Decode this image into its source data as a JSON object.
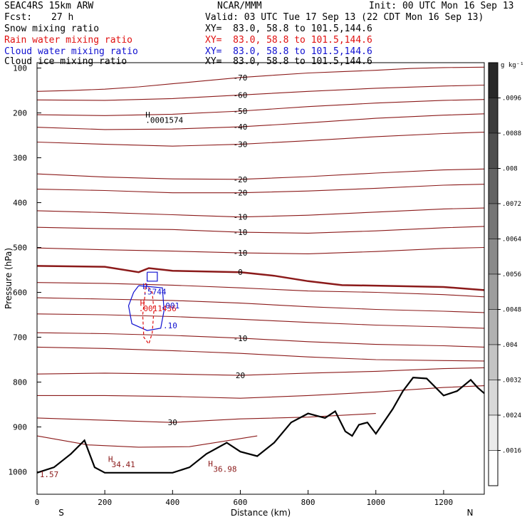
{
  "header": {
    "model": "SEAC4RS 15km ARW",
    "center": "NCAR/MMM",
    "init": "Init: 00 UTC Mon 16 Sep 13",
    "fcst_label": "Fcst:",
    "fcst_value": "27 h",
    "valid": "Valid: 03 UTC Tue 17 Sep 13 (22 CDT Mon 16 Sep 13)"
  },
  "fields": [
    {
      "label": "Snow mixing ratio",
      "xy": "XY=  83.0, 58.8 to 101.5,144.6",
      "color": "#000000"
    },
    {
      "label": "Rain water mixing ratio",
      "xy": "XY=  83.0, 58.8 to 101.5,144.6",
      "color": "#e01010"
    },
    {
      "label": "Cloud water mixing ratio",
      "xy": "XY=  83.0, 58.8 to 101.5,144.6",
      "color": "#1010d0"
    },
    {
      "label": "Cloud ice mixing ratio",
      "xy": "XY=  83.0, 58.8 to 101.5,144.6",
      "color": "#000000"
    }
  ],
  "colors": {
    "temperature": "#8b1a1a",
    "terrain": "#000000",
    "rain": "#e01010",
    "cloud": "#1010d0"
  },
  "chart_data": {
    "type": "cross-section contour",
    "xlabel": "Distance (km)",
    "ylabel": "Pressure (hPa)",
    "xlim": [
      0,
      1320
    ],
    "ylim": [
      1050,
      100
    ],
    "x_ticks": [
      0,
      200,
      400,
      600,
      800,
      1000,
      1200
    ],
    "y_ticks": [
      100,
      200,
      300,
      400,
      500,
      600,
      700,
      800,
      900,
      1000
    ],
    "x_end_labels": {
      "left": "S",
      "right": "N"
    },
    "colorbar": {
      "unit": "g kg⁻¹",
      "ticks": [
        ".0096",
        ".0088",
        ".008",
        ".0072",
        ".0064",
        ".0056",
        ".0048",
        ".004",
        ".0032",
        ".0024",
        ".0016"
      ]
    },
    "temperature_isotherms": [
      {
        "label": "-70",
        "points": [
          [
            0,
            152
          ],
          [
            100,
            150
          ],
          [
            200,
            147
          ],
          [
            300,
            142
          ],
          [
            400,
            135
          ],
          [
            500,
            128
          ],
          [
            600,
            121
          ],
          [
            700,
            116
          ],
          [
            800,
            111
          ],
          [
            900,
            108
          ],
          [
            1000,
            105
          ],
          [
            1100,
            101
          ],
          [
            1200,
            99
          ],
          [
            1320,
            98
          ]
        ]
      },
      {
        "label": "-60",
        "points": [
          [
            0,
            171
          ],
          [
            200,
            172
          ],
          [
            400,
            168
          ],
          [
            600,
            160
          ],
          [
            800,
            152
          ],
          [
            1000,
            145
          ],
          [
            1200,
            140
          ],
          [
            1320,
            138
          ]
        ]
      },
      {
        "label": "-50",
        "points": [
          [
            0,
            204
          ],
          [
            200,
            206
          ],
          [
            400,
            203
          ],
          [
            600,
            196
          ],
          [
            800,
            186
          ],
          [
            1000,
            178
          ],
          [
            1200,
            172
          ],
          [
            1320,
            170
          ]
        ]
      },
      {
        "label": "-40",
        "points": [
          [
            0,
            232
          ],
          [
            200,
            237
          ],
          [
            400,
            236
          ],
          [
            600,
            231
          ],
          [
            800,
            222
          ],
          [
            1000,
            212
          ],
          [
            1200,
            205
          ],
          [
            1320,
            202
          ]
        ]
      },
      {
        "label": "-30",
        "points": [
          [
            0,
            265
          ],
          [
            200,
            270
          ],
          [
            400,
            274
          ],
          [
            600,
            270
          ],
          [
            800,
            262
          ],
          [
            1000,
            253
          ],
          [
            1200,
            246
          ],
          [
            1320,
            243
          ]
        ]
      },
      {
        "label": "-20",
        "points": [
          [
            0,
            336
          ],
          [
            200,
            343
          ],
          [
            400,
            347
          ],
          [
            600,
            348
          ],
          [
            800,
            342
          ],
          [
            1000,
            334
          ],
          [
            1200,
            327
          ],
          [
            1320,
            325
          ]
        ]
      },
      {
        "label": "-20",
        "points": [
          [
            0,
            370
          ],
          [
            200,
            373
          ],
          [
            400,
            378
          ],
          [
            600,
            378
          ],
          [
            800,
            374
          ],
          [
            1000,
            368
          ],
          [
            1200,
            361
          ],
          [
            1320,
            359
          ]
        ]
      },
      {
        "label": "-10",
        "points": [
          [
            0,
            418
          ],
          [
            200,
            422
          ],
          [
            400,
            427
          ],
          [
            600,
            432
          ],
          [
            800,
            428
          ],
          [
            1000,
            421
          ],
          [
            1200,
            414
          ],
          [
            1320,
            412
          ]
        ]
      },
      {
        "label": "-10",
        "points": [
          [
            0,
            455
          ],
          [
            200,
            458
          ],
          [
            400,
            460
          ],
          [
            600,
            466
          ],
          [
            800,
            468
          ],
          [
            1000,
            463
          ],
          [
            1200,
            456
          ],
          [
            1320,
            453
          ]
        ]
      },
      {
        "label": "-10",
        "points": [
          [
            0,
            501
          ],
          [
            200,
            505
          ],
          [
            400,
            508
          ],
          [
            600,
            512
          ],
          [
            800,
            514
          ],
          [
            1000,
            509
          ],
          [
            1200,
            502
          ],
          [
            1320,
            500
          ]
        ]
      },
      {
        "label": "0",
        "points": [
          [
            0,
            541
          ],
          [
            200,
            543
          ],
          [
            300,
            555
          ],
          [
            330,
            546
          ],
          [
            400,
            552
          ],
          [
            600,
            555
          ],
          [
            700,
            563
          ],
          [
            800,
            575
          ],
          [
            900,
            584
          ],
          [
            1000,
            585
          ],
          [
            1200,
            588
          ],
          [
            1320,
            595
          ]
        ]
      },
      {
        "label": "",
        "points": [
          [
            0,
            578
          ],
          [
            200,
            580
          ],
          [
            400,
            584
          ],
          [
            600,
            590
          ],
          [
            800,
            597
          ],
          [
            1000,
            600
          ],
          [
            1200,
            605
          ],
          [
            1320,
            610
          ]
        ]
      },
      {
        "label": "",
        "points": [
          [
            0,
            612
          ],
          [
            200,
            615
          ],
          [
            400,
            618
          ],
          [
            600,
            624
          ],
          [
            800,
            632
          ],
          [
            1000,
            638
          ],
          [
            1200,
            642
          ],
          [
            1320,
            645
          ]
        ]
      },
      {
        "label": "",
        "points": [
          [
            0,
            648
          ],
          [
            200,
            650
          ],
          [
            400,
            654
          ],
          [
            600,
            660
          ],
          [
            800,
            667
          ],
          [
            1000,
            673
          ],
          [
            1200,
            677
          ],
          [
            1320,
            680
          ]
        ]
      },
      {
        "label": "-10",
        "points": [
          [
            0,
            690
          ],
          [
            200,
            692
          ],
          [
            400,
            696
          ],
          [
            600,
            702
          ],
          [
            800,
            710
          ],
          [
            1000,
            716
          ],
          [
            1200,
            719
          ],
          [
            1320,
            722
          ]
        ]
      },
      {
        "label": "",
        "points": [
          [
            0,
            722
          ],
          [
            200,
            725
          ],
          [
            400,
            730
          ],
          [
            600,
            736
          ],
          [
            800,
            744
          ],
          [
            1000,
            750
          ],
          [
            1200,
            752
          ],
          [
            1320,
            753
          ]
        ]
      },
      {
        "label": "20",
        "points": [
          [
            0,
            782
          ],
          [
            200,
            780
          ],
          [
            400,
            782
          ],
          [
            600,
            785
          ],
          [
            800,
            780
          ],
          [
            1000,
            776
          ],
          [
            1200,
            770
          ],
          [
            1320,
            768
          ]
        ]
      },
      {
        "label": "",
        "points": [
          [
            0,
            830
          ],
          [
            200,
            830
          ],
          [
            400,
            832
          ],
          [
            600,
            836
          ],
          [
            800,
            830
          ],
          [
            1000,
            822
          ],
          [
            1200,
            812
          ],
          [
            1320,
            808
          ]
        ]
      },
      {
        "label": "30",
        "points": [
          [
            0,
            880
          ],
          [
            200,
            885
          ],
          [
            400,
            890
          ],
          [
            600,
            882
          ],
          [
            800,
            878
          ],
          [
            1000,
            870
          ]
        ]
      },
      {
        "label": "",
        "points": [
          [
            0,
            920
          ],
          [
            150,
            940
          ],
          [
            300,
            945
          ],
          [
            450,
            944
          ],
          [
            550,
            932
          ],
          [
            650,
            920
          ]
        ]
      }
    ],
    "terrain": {
      "points": [
        [
          0,
          1002
        ],
        [
          50,
          990
        ],
        [
          100,
          960
        ],
        [
          140,
          930
        ],
        [
          170,
          990
        ],
        [
          200,
          1002
        ],
        [
          300,
          1002
        ],
        [
          400,
          1002
        ],
        [
          450,
          990
        ],
        [
          500,
          960
        ],
        [
          560,
          935
        ],
        [
          600,
          955
        ],
        [
          650,
          965
        ],
        [
          700,
          935
        ],
        [
          750,
          890
        ],
        [
          800,
          870
        ],
        [
          850,
          880
        ],
        [
          880,
          865
        ],
        [
          910,
          910
        ],
        [
          930,
          920
        ],
        [
          950,
          895
        ],
        [
          975,
          890
        ],
        [
          1000,
          915
        ],
        [
          1050,
          860
        ],
        [
          1080,
          820
        ],
        [
          1110,
          790
        ],
        [
          1150,
          792
        ],
        [
          1200,
          830
        ],
        [
          1240,
          820
        ],
        [
          1280,
          795
        ],
        [
          1300,
          812
        ],
        [
          1320,
          825
        ]
      ]
    },
    "rain_contour": {
      "points": [
        [
          320,
          580
        ],
        [
          340,
          600
        ],
        [
          345,
          640
        ],
        [
          340,
          690
        ],
        [
          330,
          715
        ],
        [
          315,
          700
        ],
        [
          312,
          650
        ],
        [
          318,
          610
        ],
        [
          320,
          580
        ]
      ]
    },
    "cloud_contours": [
      {
        "points": [
          [
            325,
            555
          ],
          [
            355,
            555
          ],
          [
            355,
            575
          ],
          [
            325,
            575
          ],
          [
            325,
            555
          ]
        ]
      },
      {
        "points": [
          [
            300,
            585
          ],
          [
            370,
            590
          ],
          [
            375,
            640
          ],
          [
            365,
            680
          ],
          [
            325,
            685
          ],
          [
            280,
            670
          ],
          [
            270,
            630
          ],
          [
            285,
            600
          ],
          [
            300,
            585
          ]
        ]
      }
    ],
    "annotations": [
      {
        "text": "H",
        "x": 320,
        "y": 210,
        "color": "#000000"
      },
      {
        "text": ".0001574",
        "x": 320,
        "y": 222,
        "color": "#000000"
      },
      {
        "text": "H",
        "x": 312,
        "y": 593,
        "color": "#1010d0"
      },
      {
        "text": ".5744",
        "x": 312,
        "y": 605,
        "color": "#1010d0"
      },
      {
        "text": "H",
        "x": 304,
        "y": 630,
        "color": "#e01010"
      },
      {
        "text": ".0011436",
        "x": 300,
        "y": 642,
        "color": "#e01010"
      },
      {
        "text": ".001",
        "x": 365,
        "y": 636,
        "color": "#1010d0"
      },
      {
        "text": ".10",
        "x": 372,
        "y": 680,
        "color": "#1010d0"
      },
      {
        "text": "H",
        "x": 210,
        "y": 978,
        "color": "#8b1a1a"
      },
      {
        "text": "34.41",
        "x": 220,
        "y": 990,
        "color": "#8b1a1a"
      },
      {
        "text": "H",
        "x": 505,
        "y": 988,
        "color": "#8b1a1a"
      },
      {
        "text": "36.98",
        "x": 520,
        "y": 1000,
        "color": "#8b1a1a"
      },
      {
        "text": "1.57",
        "x": 8,
        "y": 1012,
        "color": "#8b1a1a"
      }
    ]
  }
}
